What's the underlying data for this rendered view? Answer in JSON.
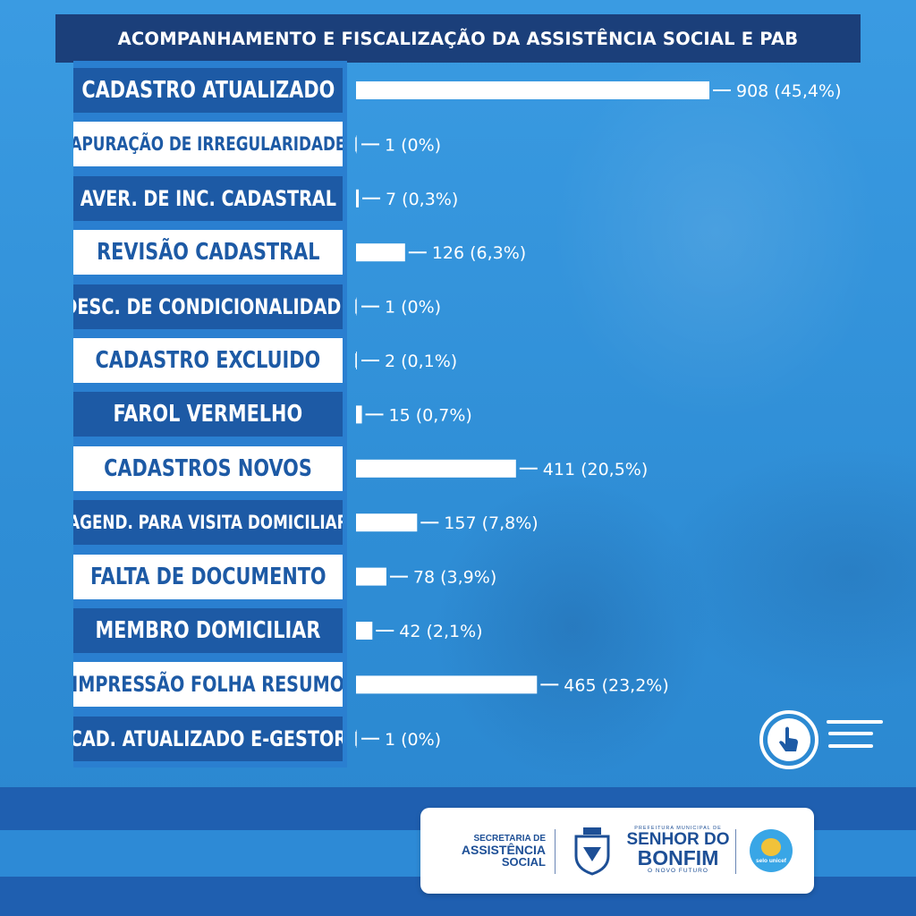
{
  "title": "ACOMPANHAMENTO E FISCALIZAÇÃO DA ASSISTÊNCIA SOCIAL E PAB",
  "colors": {
    "bar": "#ffffff",
    "dark_label_bg": "#1d5aa5",
    "light_label_bg": "#ffffff",
    "title_bg": "#1b3f7a"
  },
  "chart_data": {
    "type": "bar",
    "orientation": "horizontal",
    "categories": [
      "CADASTRO ATUALIZADO",
      "APURAÇÃO DE IRREGULARIDADE",
      "AVER. DE INC. CADASTRAL",
      "REVISÃO CADASTRAL",
      "DESC. DE CONDICIONALIDADE",
      "CADASTRO EXCLUIDO",
      "FAROL VERMELHO",
      "CADASTROS NOVOS",
      "AGEND. PARA VISITA DOMICILIAR",
      "FALTA DE DOCUMENTO",
      "MEMBRO DOMICILIAR",
      "IMPRESSÃO FOLHA RESUMO",
      "CAD. ATUALIZADO E-GESTOR"
    ],
    "values": [
      908,
      1,
      7,
      126,
      1,
      2,
      15,
      411,
      157,
      78,
      42,
      465,
      1
    ],
    "percent_labels": [
      "(45,4%)",
      "(0%)",
      "(0,3%)",
      "(6,3%)",
      "(0%)",
      "(0,1%)",
      "(0,7%)",
      "(20,5%)",
      "(7,8%)",
      "(3,9%)",
      "(2,1%)",
      "(23,2%)",
      "(0%)"
    ],
    "label_styles": [
      "dark",
      "light",
      "dark",
      "light",
      "dark",
      "light",
      "dark",
      "light",
      "dark",
      "light",
      "dark",
      "light",
      "dark"
    ],
    "xlim": [
      0,
      908
    ]
  },
  "footer": {
    "secretaria": {
      "line1": "SECRETARIA DE",
      "line2": "ASSISTÊNCIA",
      "line3": "SOCIAL"
    },
    "prefeitura": {
      "line1": "PREFEITURA MUNICIPAL DE",
      "line2": "SENHOR DO",
      "line3": "BONFIM",
      "line4": "O NOVO FUTURO"
    },
    "seal": {
      "line1": "selo unicef"
    }
  }
}
